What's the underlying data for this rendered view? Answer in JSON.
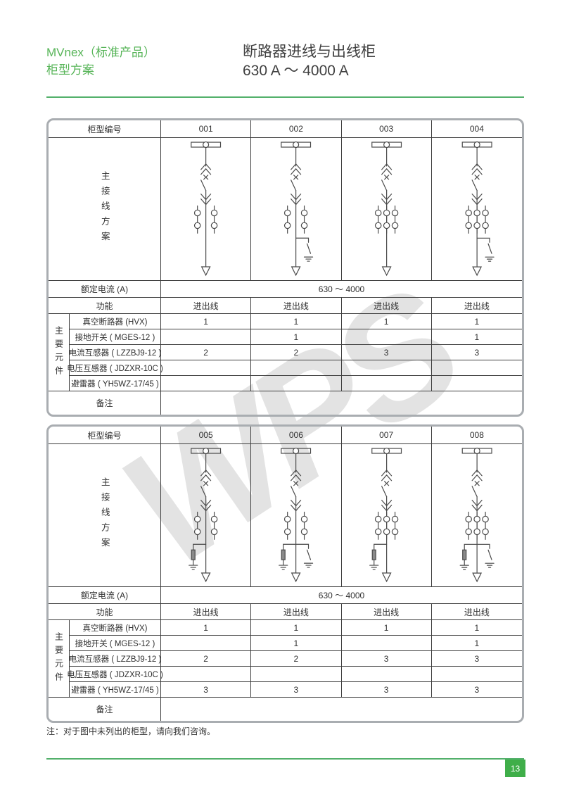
{
  "header": {
    "product_line": "MVnex（标准产品）",
    "subtitle": "柜型方案",
    "title": "断路器进线与出线柜",
    "current_range": "630 A ～ 4000 A"
  },
  "labels": {
    "cabinet_no": "柜型编号",
    "main_scheme": "主接线方案",
    "rated_current": "额定电流 (A)",
    "function": "功能",
    "main_components": "主要元件",
    "remark": "备注"
  },
  "tables": [
    {
      "cabinet_numbers": [
        "001",
        "002",
        "003",
        "004"
      ],
      "rated_current_value": "630 ～ 4000",
      "functions": [
        "进出线",
        "进出线",
        "进出线",
        "进出线"
      ],
      "component_rows": [
        {
          "label": "真空断路器 (HVX)",
          "values": [
            "1",
            "1",
            "1",
            "1"
          ]
        },
        {
          "label": "接地开关 ( MGES-12 )",
          "values": [
            "",
            "1",
            "",
            "1"
          ]
        },
        {
          "label": "电流互感器 ( LZZBJ9-12 )",
          "values": [
            "2",
            "2",
            "3",
            "3"
          ]
        },
        {
          "label": "电压互感器 ( JDZXR-10C )",
          "values": [
            "",
            "",
            "",
            ""
          ]
        },
        {
          "label": "避雷器 ( YH5WZ-17/45 )",
          "values": [
            "",
            "",
            "",
            ""
          ]
        }
      ],
      "remark": "",
      "diagrams": [
        {
          "cts": 2,
          "earth_switch": false,
          "arrester": false
        },
        {
          "cts": 2,
          "earth_switch": true,
          "arrester": false
        },
        {
          "cts": 3,
          "earth_switch": false,
          "arrester": false
        },
        {
          "cts": 3,
          "earth_switch": true,
          "arrester": false
        }
      ]
    },
    {
      "cabinet_numbers": [
        "005",
        "006",
        "007",
        "008"
      ],
      "rated_current_value": "630 ～ 4000",
      "functions": [
        "进出线",
        "进出线",
        "进出线",
        "进出线"
      ],
      "component_rows": [
        {
          "label": "真空断路器 (HVX)",
          "values": [
            "1",
            "1",
            "1",
            "1"
          ]
        },
        {
          "label": "接地开关 ( MGES-12 )",
          "values": [
            "",
            "1",
            "",
            "1"
          ]
        },
        {
          "label": "电流互感器 ( LZZBJ9-12 )",
          "values": [
            "2",
            "2",
            "3",
            "3"
          ]
        },
        {
          "label": "电压互感器 ( JDZXR-10C )",
          "values": [
            "",
            "",
            "",
            ""
          ]
        },
        {
          "label": "避雷器 ( YH5WZ-17/45 )",
          "values": [
            "3",
            "3",
            "3",
            "3"
          ]
        }
      ],
      "remark": "",
      "diagrams": [
        {
          "cts": 2,
          "earth_switch": false,
          "arrester": true
        },
        {
          "cts": 2,
          "earth_switch": true,
          "arrester": true
        },
        {
          "cts": 3,
          "earth_switch": false,
          "arrester": true
        },
        {
          "cts": 3,
          "earth_switch": true,
          "arrester": true
        }
      ]
    }
  ],
  "note": "注：对于图中未列出的柜型，请向我们咨询。",
  "page_number": "13",
  "watermark": "WPS",
  "colors": {
    "green_text": "#56b457",
    "rule_green": "#53b06b",
    "page_box": "#3fae49",
    "table_border": "#a9adb1",
    "line": "#3f3f3f",
    "watermark": "#e3e3e3"
  }
}
